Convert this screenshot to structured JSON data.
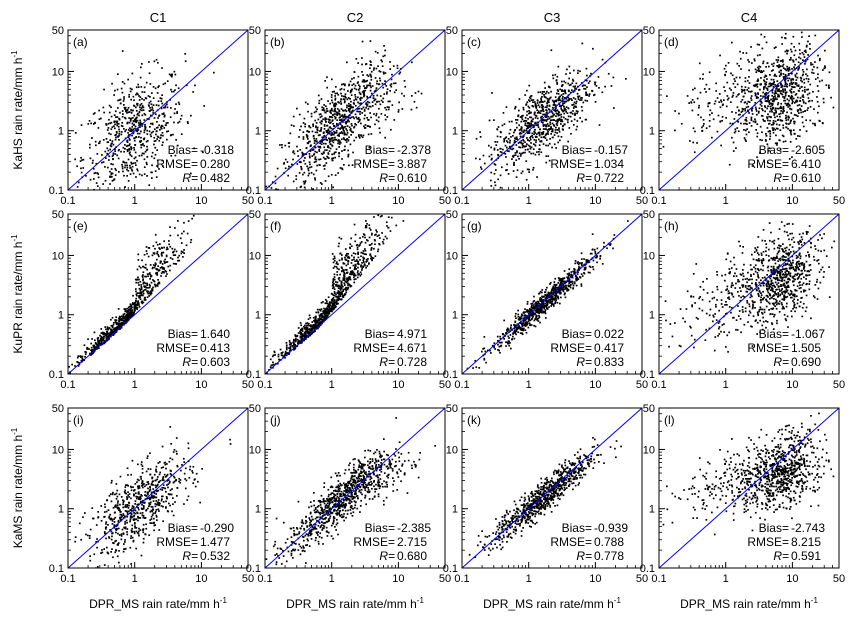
{
  "colors": {
    "one_to_one_line": "#0000ff",
    "points": "#000000",
    "frame": "#000000"
  },
  "chart_data": {
    "type": "scatter",
    "log_scale": true,
    "xlim": [
      0.1,
      50
    ],
    "ylim": [
      0.1,
      50
    ],
    "x_ticks": [
      "0.1",
      "1",
      "10",
      "50"
    ],
    "y_ticks": [
      "0.1",
      "1",
      "10",
      "50"
    ],
    "reference_line": "1:1",
    "column_titles": [
      "C1",
      "C2",
      "C3",
      "C4"
    ],
    "row_ylabels": [
      "KaHS rain rate/mm h",
      "KuPR rain rate/mm h",
      "KaMS rain rate/mm h"
    ],
    "ylabel_superscript": "-1",
    "xlabel": "DPR_MS rain rate/mm h",
    "xlabel_superscript": "-1",
    "stat_labels": {
      "bias": "Bias=",
      "rmse": "RMSE=",
      "r": "R="
    },
    "panels": [
      {
        "label": "(a)",
        "row": 0,
        "col": 0,
        "bias": "-0.318",
        "rmse": "0.280",
        "r": "0.482",
        "pattern": "spread",
        "xc": 0.9,
        "spread": 0.45,
        "n": 650,
        "slope": 0.55
      },
      {
        "label": "(b)",
        "row": 0,
        "col": 1,
        "bias": "-2.378",
        "rmse": "3.887",
        "r": "0.610",
        "pattern": "saturate",
        "xc": 1.5,
        "spread": 0.35,
        "n": 900,
        "slope": 0.6
      },
      {
        "label": "(c)",
        "row": 0,
        "col": 2,
        "bias": "-0.157",
        "rmse": "1.034",
        "r": "0.722",
        "pattern": "spread",
        "xc": 2.2,
        "spread": 0.3,
        "n": 800,
        "slope": 0.8
      },
      {
        "label": "(d)",
        "row": 0,
        "col": 3,
        "bias": "-2.605",
        "rmse": "6.410",
        "r": "0.610",
        "pattern": "cluster",
        "xc": 7.0,
        "spread": 0.4,
        "n": 900,
        "slope": 0.3
      },
      {
        "label": "(e)",
        "row": 1,
        "col": 0,
        "bias": "1.640",
        "rmse": "0.413",
        "r": "0.603",
        "pattern": "curve",
        "xc": 1.2,
        "spread": 0.22,
        "n": 750,
        "slope": 1.3
      },
      {
        "label": "(f)",
        "row": 1,
        "col": 1,
        "bias": "4.971",
        "rmse": "4.671",
        "r": "0.728",
        "pattern": "curve",
        "xc": 2.0,
        "spread": 0.25,
        "n": 900,
        "slope": 1.4
      },
      {
        "label": "(g)",
        "row": 1,
        "col": 2,
        "bias": "0.022",
        "rmse": "0.417",
        "r": "0.833",
        "pattern": "tight",
        "xc": 2.5,
        "spread": 0.1,
        "n": 800,
        "slope": 1.0
      },
      {
        "label": "(h)",
        "row": 1,
        "col": 3,
        "bias": "-1.067",
        "rmse": "1.505",
        "r": "0.690",
        "pattern": "cluster",
        "xc": 7.0,
        "spread": 0.35,
        "n": 900,
        "slope": 0.4
      },
      {
        "label": "(i)",
        "row": 2,
        "col": 0,
        "bias": "-0.290",
        "rmse": "1.477",
        "r": "0.532",
        "pattern": "spread",
        "xc": 1.3,
        "spread": 0.3,
        "n": 650,
        "slope": 0.75
      },
      {
        "label": "(j)",
        "row": 2,
        "col": 1,
        "bias": "-2.385",
        "rmse": "2.715",
        "r": "0.680",
        "pattern": "saturate",
        "xc": 2.0,
        "spread": 0.2,
        "n": 900,
        "slope": 0.6
      },
      {
        "label": "(k)",
        "row": 2,
        "col": 2,
        "bias": "-0.939",
        "rmse": "0.788",
        "r": "0.778",
        "pattern": "tight",
        "xc": 2.5,
        "spread": 0.14,
        "n": 800,
        "slope": 0.9
      },
      {
        "label": "(l)",
        "row": 2,
        "col": 3,
        "bias": "-2.743",
        "rmse": "8.215",
        "r": "0.591",
        "pattern": "cluster",
        "xc": 7.0,
        "spread": 0.3,
        "n": 900,
        "slope": 0.35
      }
    ]
  }
}
